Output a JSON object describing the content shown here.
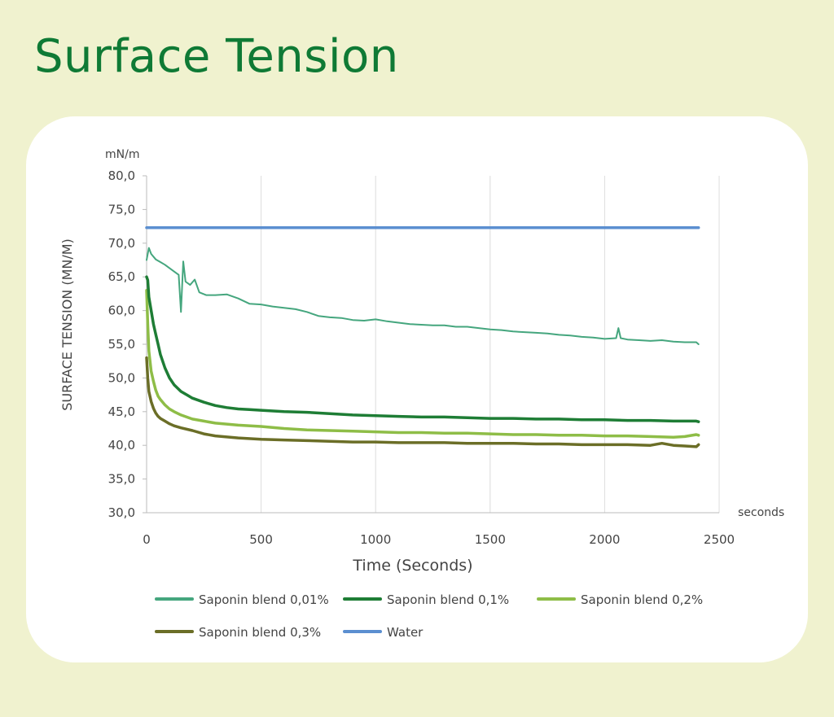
{
  "title": "Surface Tension",
  "colors": {
    "background": "#f0f2cf",
    "title": "#0f7a35",
    "saponin_001": "#45a67e",
    "saponin_01": "#1e7d35",
    "saponin_02": "#8ebd47",
    "saponin_03": "#6b6e27",
    "water": "#5b8fd0"
  },
  "chart_data": {
    "type": "line",
    "title": "Surface Tension",
    "xlabel": "Time (Seconds)",
    "ylabel": "SURFACE TENSION (MN/M)",
    "y_unit": "mN/m",
    "x_unit": "seconds",
    "xlim": [
      0,
      2500
    ],
    "ylim": [
      30,
      80
    ],
    "x_ticks": [
      "0",
      "500",
      "1000",
      "1500",
      "2000",
      "2500"
    ],
    "y_ticks": [
      "30,0",
      "35,0",
      "40,0",
      "45,0",
      "50,0",
      "55,0",
      "60,0",
      "65,0",
      "70,0",
      "75,0",
      "80,0"
    ],
    "grid": "vertical",
    "legend_position": "bottom",
    "series": [
      {
        "name": "Saponin blend 0,01%",
        "color": "#45a67e",
        "x": [
          0,
          10,
          20,
          40,
          60,
          80,
          100,
          120,
          140,
          150,
          160,
          170,
          190,
          210,
          230,
          260,
          300,
          350,
          400,
          450,
          500,
          550,
          600,
          650,
          700,
          750,
          800,
          850,
          900,
          950,
          1000,
          1050,
          1100,
          1150,
          1200,
          1250,
          1300,
          1350,
          1400,
          1450,
          1500,
          1550,
          1600,
          1650,
          1700,
          1750,
          1800,
          1850,
          1900,
          1950,
          2000,
          2050,
          2060,
          2070,
          2100,
          2150,
          2200,
          2250,
          2300,
          2350,
          2400,
          2410
        ],
        "y": [
          67.5,
          69.3,
          68.4,
          67.6,
          67.2,
          66.8,
          66.3,
          65.8,
          65.3,
          59.8,
          67.3,
          64.3,
          63.8,
          64.6,
          62.7,
          62.3,
          62.3,
          62.4,
          61.8,
          61.0,
          60.9,
          60.6,
          60.4,
          60.2,
          59.8,
          59.2,
          59.0,
          58.9,
          58.6,
          58.5,
          58.7,
          58.4,
          58.2,
          58.0,
          57.9,
          57.8,
          57.8,
          57.6,
          57.6,
          57.4,
          57.2,
          57.1,
          56.9,
          56.8,
          56.7,
          56.6,
          56.4,
          56.3,
          56.1,
          56.0,
          55.8,
          55.9,
          57.4,
          55.9,
          55.7,
          55.6,
          55.5,
          55.6,
          55.4,
          55.3,
          55.3,
          55.0
        ]
      },
      {
        "name": "Saponin blend 0,1%",
        "color": "#1e7d35",
        "x": [
          0,
          5,
          10,
          20,
          30,
          40,
          50,
          60,
          80,
          100,
          120,
          150,
          180,
          200,
          250,
          300,
          350,
          400,
          450,
          500,
          600,
          700,
          800,
          900,
          1000,
          1100,
          1200,
          1300,
          1400,
          1500,
          1600,
          1700,
          1800,
          1900,
          2000,
          2100,
          2200,
          2300,
          2400,
          2410
        ],
        "y": [
          65.0,
          64.5,
          62.0,
          60.0,
          58.0,
          56.5,
          55.0,
          53.5,
          51.5,
          50.0,
          49.0,
          48.0,
          47.4,
          47.0,
          46.4,
          45.9,
          45.6,
          45.4,
          45.3,
          45.2,
          45.0,
          44.9,
          44.7,
          44.5,
          44.4,
          44.3,
          44.2,
          44.2,
          44.1,
          44.0,
          44.0,
          43.9,
          43.9,
          43.8,
          43.8,
          43.7,
          43.7,
          43.6,
          43.6,
          43.5
        ]
      },
      {
        "name": "Saponin blend 0,2%",
        "color": "#8ebd47",
        "x": [
          0,
          5,
          10,
          20,
          30,
          40,
          50,
          60,
          80,
          100,
          120,
          150,
          200,
          250,
          300,
          400,
          500,
          600,
          700,
          800,
          900,
          1000,
          1100,
          1200,
          1300,
          1400,
          1500,
          1600,
          1700,
          1800,
          1900,
          2000,
          2100,
          2200,
          2300,
          2350,
          2400,
          2410
        ],
        "y": [
          63.0,
          58.0,
          54.0,
          51.0,
          49.5,
          48.2,
          47.3,
          46.8,
          46.0,
          45.4,
          45.0,
          44.5,
          43.9,
          43.6,
          43.3,
          43.0,
          42.8,
          42.5,
          42.3,
          42.2,
          42.1,
          42.0,
          41.9,
          41.9,
          41.8,
          41.8,
          41.7,
          41.6,
          41.6,
          41.5,
          41.5,
          41.4,
          41.4,
          41.3,
          41.2,
          41.3,
          41.6,
          41.5
        ]
      },
      {
        "name": "Saponin blend 0,3%",
        "color": "#6b6e27",
        "x": [
          0,
          5,
          10,
          20,
          30,
          40,
          50,
          60,
          80,
          100,
          120,
          150,
          200,
          250,
          300,
          400,
          500,
          600,
          700,
          800,
          900,
          1000,
          1100,
          1200,
          1300,
          1400,
          1500,
          1600,
          1700,
          1800,
          1900,
          2000,
          2100,
          2200,
          2250,
          2300,
          2350,
          2400,
          2410
        ],
        "y": [
          53.0,
          50.0,
          48.0,
          46.5,
          45.5,
          44.8,
          44.3,
          44.0,
          43.6,
          43.2,
          42.9,
          42.6,
          42.2,
          41.7,
          41.4,
          41.1,
          40.9,
          40.8,
          40.7,
          40.6,
          40.5,
          40.5,
          40.4,
          40.4,
          40.4,
          40.3,
          40.3,
          40.3,
          40.2,
          40.2,
          40.1,
          40.1,
          40.1,
          40.0,
          40.3,
          40.0,
          39.9,
          39.8,
          40.1
        ]
      },
      {
        "name": "Water",
        "color": "#5b8fd0",
        "x": [
          0,
          2410
        ],
        "y": [
          72.3,
          72.3
        ]
      }
    ]
  }
}
